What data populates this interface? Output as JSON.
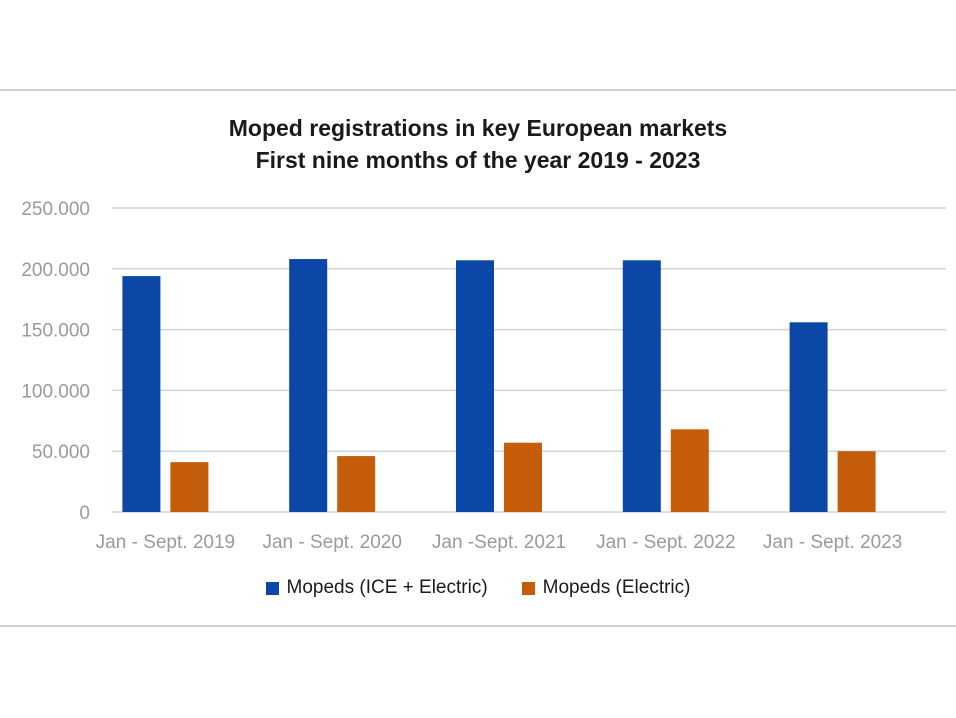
{
  "chart_data": {
    "type": "bar",
    "title": "Moped registrations in key European markets",
    "subtitle": "First nine months of the year 2019 - 2023",
    "categories": [
      "Jan - Sept. 2019",
      "Jan - Sept. 2020",
      "Jan -Sept. 2021",
      "Jan - Sept. 2022",
      "Jan - Sept. 2023"
    ],
    "series": [
      {
        "name": "Mopeds (ICE + Electric)",
        "color": "#0a47a6",
        "values": [
          194000,
          208000,
          207000,
          207000,
          156000
        ]
      },
      {
        "name": "Mopeds (Electric)",
        "color": "#c65d0b",
        "values": [
          41000,
          46000,
          57000,
          68000,
          50000
        ]
      }
    ],
    "ylim": [
      0,
      250000
    ],
    "yticks": [
      0,
      50000,
      100000,
      150000,
      200000,
      250000
    ],
    "ytick_labels": [
      "0",
      "50.000",
      "100.000",
      "150.000",
      "200.000",
      "250.000"
    ],
    "grid": true,
    "legend_position": "bottom",
    "xlabel": "",
    "ylabel": ""
  }
}
